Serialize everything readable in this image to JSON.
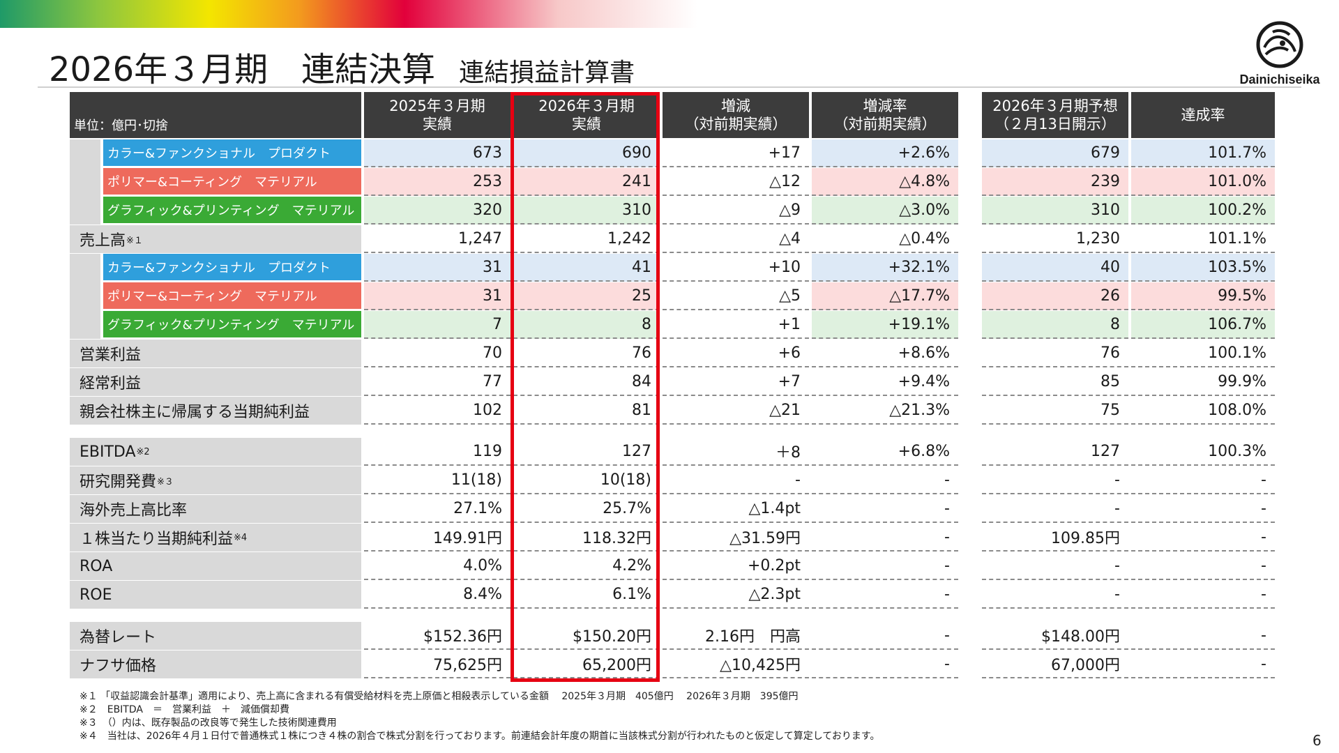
{
  "header": {
    "title_main": "2026年３月期　連結決算",
    "title_sub": "連結損益計算書",
    "logo_text": "Dainichiseika"
  },
  "columns": {
    "unit": "単位：億円･切捨",
    "fy2025": [
      "2025年３月期",
      "実績"
    ],
    "fy2026": [
      "2026年３月期",
      "実績"
    ],
    "change": [
      "増減",
      "（対前期実績）"
    ],
    "change_rate": [
      "増減率",
      "（対前期実績）"
    ],
    "forecast": [
      "2026年３月期予想",
      "（２月13日開示）"
    ],
    "achievement": [
      "達成率"
    ]
  },
  "rows": [
    {
      "label": "カラー&ファンクショナル　プロダクト",
      "segment": "blue",
      "values": [
        "673",
        "690",
        "+17",
        "+2.6%",
        "679",
        "101.7%"
      ]
    },
    {
      "label": "ポリマー&コーティング　マテリアル",
      "segment": "red",
      "values": [
        "253",
        "241",
        "△12",
        "△4.8%",
        "239",
        "101.0%"
      ]
    },
    {
      "label": "グラフィック&プリンティング　マテリアル",
      "segment": "green",
      "values": [
        "320",
        "310",
        "△9",
        "△3.0%",
        "310",
        "100.2%"
      ]
    },
    {
      "label": "売上高",
      "sup": "※１",
      "values": [
        "1,247",
        "1,242",
        "△4",
        "△0.4%",
        "1,230",
        "101.1%"
      ]
    },
    {
      "label": "カラー&ファンクショナル　プロダクト",
      "segment": "blue",
      "values": [
        "31",
        "41",
        "+10",
        "+32.1%",
        "40",
        "103.5%"
      ]
    },
    {
      "label": "ポリマー&コーティング　マテリアル",
      "segment": "red",
      "values": [
        "31",
        "25",
        "△5",
        "△17.7%",
        "26",
        "99.5%"
      ]
    },
    {
      "label": "グラフィック&プリンティング　マテリアル",
      "segment": "green",
      "values": [
        "7",
        "8",
        "+1",
        "+19.1%",
        "8",
        "106.7%"
      ]
    },
    {
      "label": "営業利益",
      "values": [
        "70",
        "76",
        "+6",
        "+8.6%",
        "76",
        "100.1%"
      ]
    },
    {
      "label": "経常利益",
      "values": [
        "77",
        "84",
        "+7",
        "+9.4%",
        "85",
        "99.9%"
      ]
    },
    {
      "label": "親会社株主に帰属する当期純利益",
      "values": [
        "102",
        "81",
        "△21",
        "△21.3%",
        "75",
        "108.0%"
      ]
    },
    {
      "label": "EBITDA",
      "sup": "※2",
      "values": [
        "119",
        "127",
        "＋8",
        "+6.8%",
        "127",
        "100.3%"
      ]
    },
    {
      "label": "研究開発費",
      "sup": "※３",
      "values": [
        "11(18)",
        "10(18)",
        "-",
        "-",
        "-",
        "-"
      ]
    },
    {
      "label": "海外売上高比率",
      "values": [
        "27.1%",
        "25.7%",
        "△1.4pt",
        "-",
        "-",
        "-"
      ]
    },
    {
      "label": "１株当たり当期純利益",
      "sup": "※4",
      "values": [
        "149.91円",
        "118.32円",
        "△31.59円",
        "-",
        "109.85円",
        "-"
      ]
    },
    {
      "label": "ROA",
      "values": [
        "4.0%",
        "4.2%",
        "+0.2pt",
        "-",
        "-",
        "-"
      ]
    },
    {
      "label": "ROE",
      "values": [
        "8.4%",
        "6.1%",
        "△2.3pt",
        "-",
        "-",
        "-"
      ]
    },
    {
      "label": "為替レート",
      "values": [
        "$152.36円",
        "$150.20円",
        "2.16円　円高",
        "-",
        "$148.00円",
        "-"
      ]
    },
    {
      "label": "ナフサ価格",
      "values": [
        "75,625円",
        "65,200円",
        "△10,425円",
        "-",
        "67,000円",
        "-"
      ]
    }
  ],
  "notes": [
    "※１ 「収益認識会計基準」適用により、売上高に含まれる有償受給材料を売上原価と相殺表示している金額　 2025年３月期　405億円　 2026年３月期　395億円",
    "※２　EBITDA　＝　営業利益　＋　減価償却費",
    "※３　（）内は、既存製品の改良等で発生した技術関連費用",
    "※４　当社は、2026年４月１日付で普通株式１株につき４株の割合で株式分割を行っております。前連結会計年度の期首に当該株式分割が行われたものと仮定して算定しております。"
  ],
  "page_number": "6",
  "colors": {
    "segment_blue": "#2f9fdc",
    "segment_red": "#ee6a5c",
    "segment_green": "#3aaa35",
    "highlight": "#e60012",
    "header_bg": "#3c3c3c"
  }
}
